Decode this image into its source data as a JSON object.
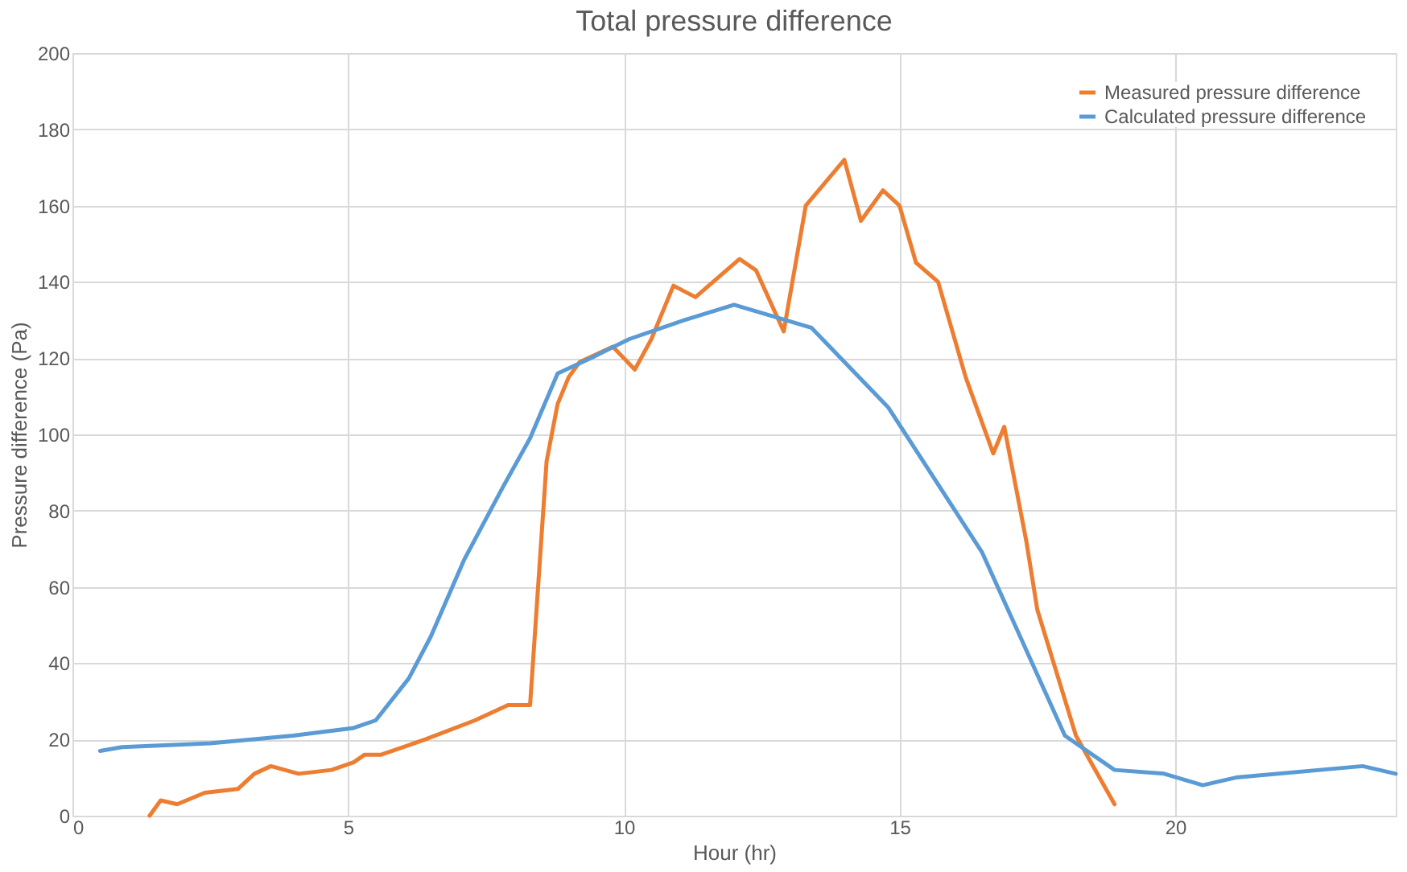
{
  "chart_data": {
    "type": "line",
    "title": "Total pressure difference",
    "xlabel": "Hour (hr)",
    "ylabel": "Pressure difference (Pa)",
    "xlim": [
      0,
      24
    ],
    "xticks": [
      0,
      5,
      10,
      15,
      20
    ],
    "ylim": [
      0,
      200
    ],
    "yticks": [
      0,
      20,
      40,
      60,
      80,
      100,
      120,
      140,
      160,
      180,
      200
    ],
    "grid": true,
    "legend": "top right",
    "marker": "none",
    "line_style": "solid",
    "series": [
      {
        "name": "Measured pressure difference",
        "color": "#ed7d31",
        "x": [
          1.4,
          1.6,
          1.9,
          2.4,
          3.0,
          3.3,
          3.6,
          4.1,
          4.7,
          5.1,
          5.3,
          5.6,
          6.4,
          7.3,
          7.9,
          8.3,
          8.6,
          8.8,
          9.0,
          9.2,
          9.8,
          10.2,
          10.5,
          10.9,
          11.3,
          12.1,
          12.4,
          12.9,
          13.3,
          14.0,
          14.3,
          14.7,
          15.0,
          15.3,
          15.7,
          16.2,
          16.7,
          16.9,
          17.3,
          17.5,
          18.2,
          18.9
        ],
        "values": [
          0,
          4,
          3,
          6,
          7,
          11,
          13,
          11,
          12,
          14,
          16,
          16,
          20,
          25,
          29,
          29,
          93,
          108,
          115,
          119,
          123,
          117,
          125,
          139,
          136,
          146,
          143,
          127,
          160,
          172,
          156,
          164,
          160,
          145,
          140,
          115,
          95,
          102,
          72,
          54,
          21,
          3
        ]
      },
      {
        "name": "Calculated pressure difference",
        "color": "#5b9bd5",
        "x": [
          0.5,
          0.9,
          2.5,
          4.0,
          5.1,
          5.5,
          6.1,
          6.5,
          7.1,
          7.8,
          8.3,
          8.8,
          9.4,
          10.1,
          11.1,
          12.0,
          12.7,
          13.4,
          14.8,
          16.5,
          18.0,
          18.9,
          19.8,
          20.5,
          21.1,
          23.4,
          24.0
        ],
        "values": [
          17,
          18,
          19,
          21,
          23,
          25,
          36,
          47,
          67,
          86,
          99,
          116,
          120,
          125,
          130,
          134,
          131,
          128,
          107,
          69,
          21,
          12,
          11,
          8,
          10,
          13,
          11
        ]
      }
    ]
  }
}
